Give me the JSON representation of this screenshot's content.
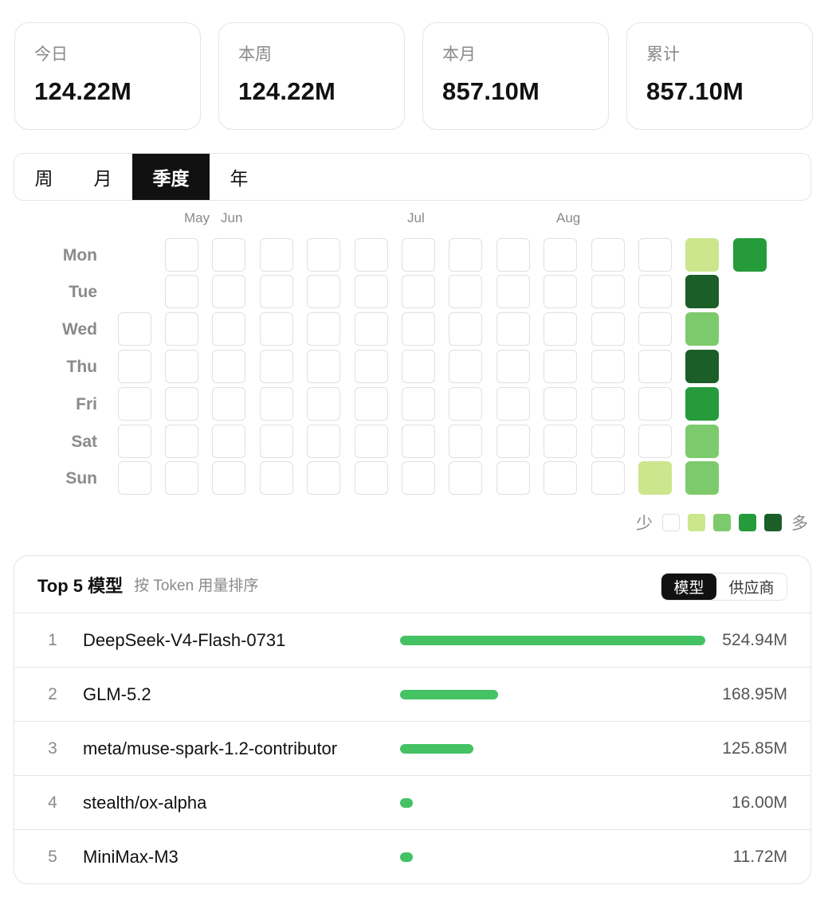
{
  "stats": [
    {
      "label": "今日",
      "value": "124.22M"
    },
    {
      "label": "本周",
      "value": "124.22M"
    },
    {
      "label": "本月",
      "value": "857.10M"
    },
    {
      "label": "累计",
      "value": "857.10M"
    }
  ],
  "tabs": [
    "周",
    "月",
    "季度",
    "年"
  ],
  "active_tab": "季度",
  "heatmap": {
    "months": [
      "May",
      "Jun",
      "Jul",
      "Aug"
    ],
    "days": [
      "Mon",
      "Tue",
      "Wed",
      "Thu",
      "Fri",
      "Sat",
      "Sun"
    ],
    "levels": [
      [
        null,
        0,
        0,
        0,
        0,
        0,
        0,
        0,
        0,
        0,
        0,
        0,
        1,
        3
      ],
      [
        null,
        0,
        0,
        0,
        0,
        0,
        0,
        0,
        0,
        0,
        0,
        0,
        4,
        null
      ],
      [
        0,
        0,
        0,
        0,
        0,
        0,
        0,
        0,
        0,
        0,
        0,
        0,
        2,
        null
      ],
      [
        0,
        0,
        0,
        0,
        0,
        0,
        0,
        0,
        0,
        0,
        0,
        0,
        4,
        null
      ],
      [
        0,
        0,
        0,
        0,
        0,
        0,
        0,
        0,
        0,
        0,
        0,
        0,
        3,
        null
      ],
      [
        0,
        0,
        0,
        0,
        0,
        0,
        0,
        0,
        0,
        0,
        0,
        0,
        2,
        null
      ],
      [
        0,
        0,
        0,
        0,
        0,
        0,
        0,
        0,
        0,
        0,
        0,
        1,
        2,
        null
      ]
    ],
    "legend_less": "少",
    "legend_more": "多",
    "colors": [
      "#ffffff",
      "#cbe68d",
      "#7dca6d",
      "#259b3c",
      "#1b5e28"
    ]
  },
  "top5": {
    "title": "Top 5 模型",
    "subtitle": "按 Token 用量排序",
    "toggle": [
      "模型",
      "供应商"
    ],
    "toggle_active": "模型",
    "bar_color": "#44c264",
    "rows": [
      {
        "rank": "1",
        "name": "DeepSeek-V4-Flash-0731",
        "value": "524.94M",
        "share": 1.0
      },
      {
        "rank": "2",
        "name": "GLM-5.2",
        "value": "168.95M",
        "share": 0.322
      },
      {
        "rank": "3",
        "name": "meta/muse-spark-1.2-contributor",
        "value": "125.85M",
        "share": 0.24
      },
      {
        "rank": "4",
        "name": "stealth/ox-alpha",
        "value": "16.00M",
        "share": 0.03
      },
      {
        "rank": "5",
        "name": "MiniMax-M3",
        "value": "11.72M",
        "share": 0.022
      }
    ]
  }
}
